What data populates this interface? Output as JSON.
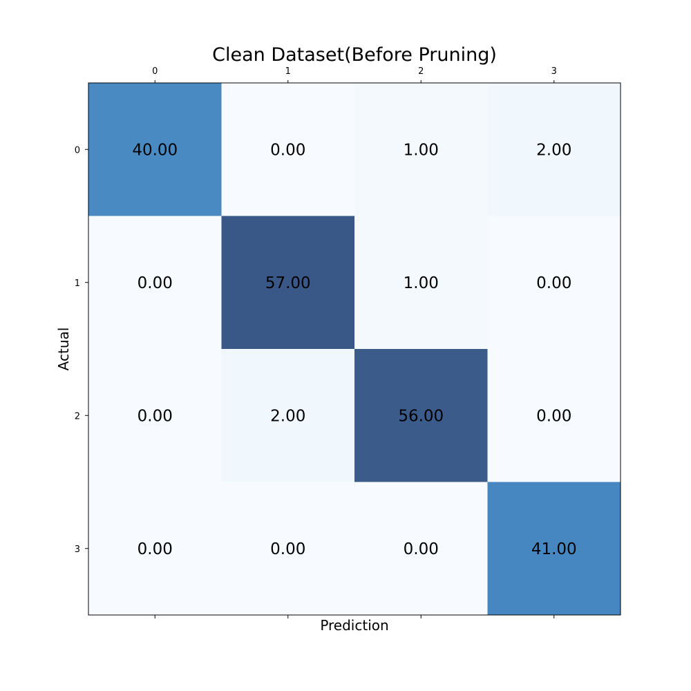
{
  "chart_data": {
    "type": "heatmap",
    "title": "Clean Dataset(Before Pruning)",
    "xlabel": "Prediction",
    "ylabel": "Actual",
    "x_categories": [
      "0",
      "1",
      "2",
      "3"
    ],
    "y_categories": [
      "0",
      "1",
      "2",
      "3"
    ],
    "values": [
      [
        40,
        0,
        1,
        2
      ],
      [
        0,
        57,
        1,
        0
      ],
      [
        0,
        2,
        56,
        0
      ],
      [
        0,
        0,
        0,
        41
      ]
    ],
    "value_format": "2 decimals",
    "colormap": "Blues",
    "x_ticks_position": "top",
    "grid": false
  }
}
